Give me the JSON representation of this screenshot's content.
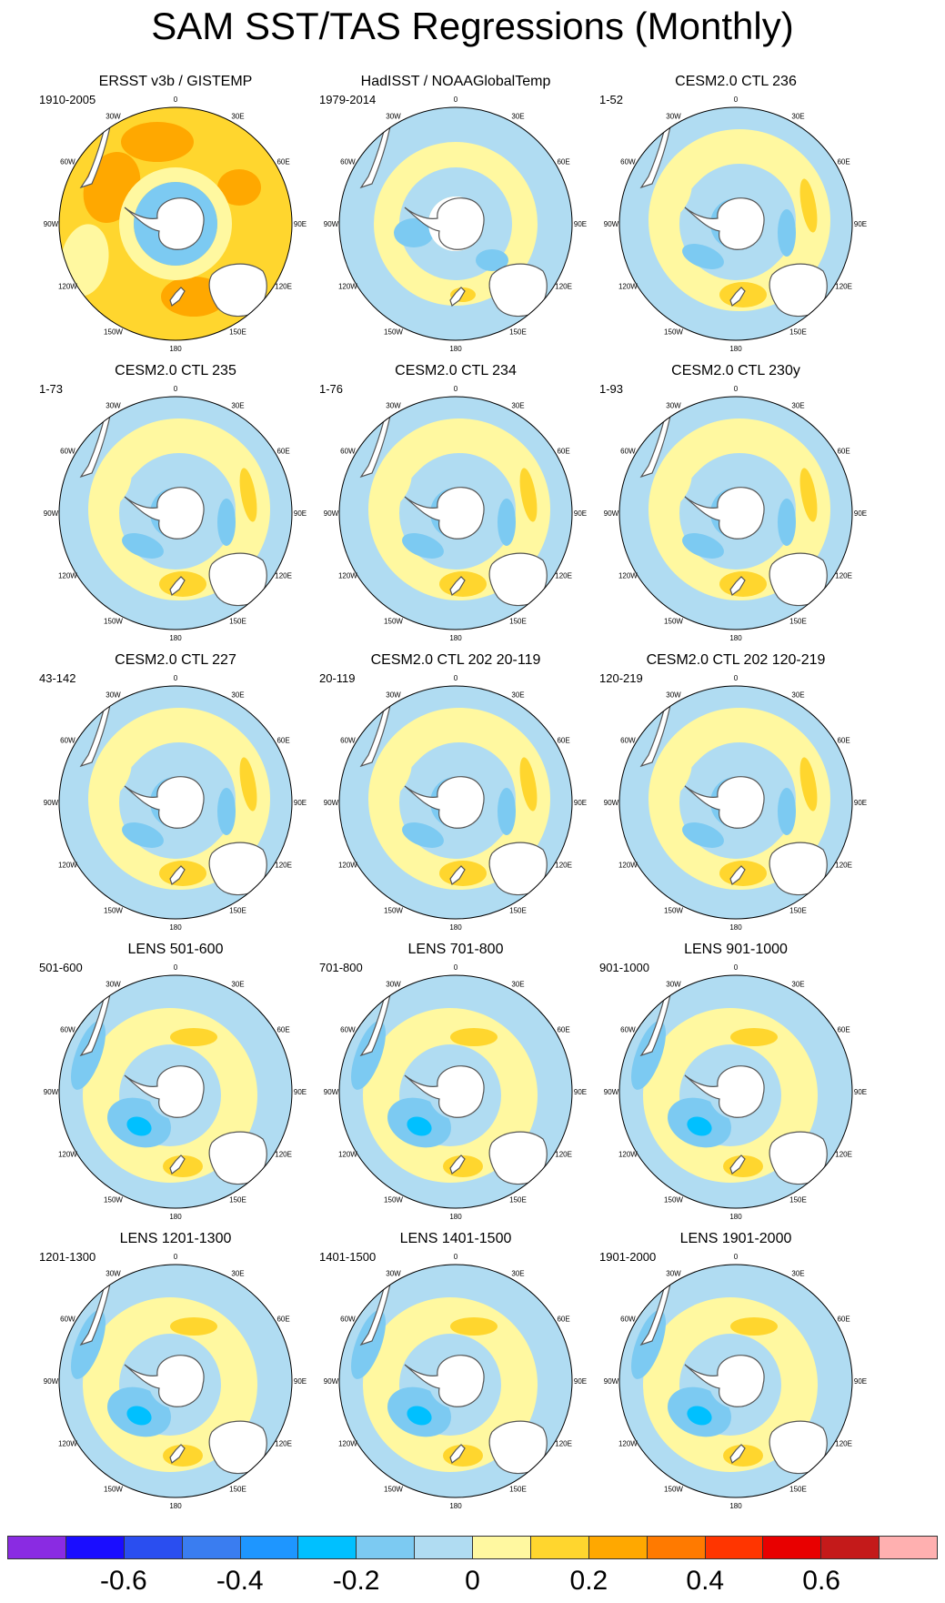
{
  "title": "SAM SST/TAS Regressions (Monthly)",
  "lon_labels": [
    "0",
    "30E",
    "60E",
    "90E",
    "120E",
    "150E",
    "180",
    "150W",
    "120W",
    "90W",
    "60W",
    "30W"
  ],
  "colors": {
    "land": "#ffffff",
    "coast": "#555555",
    "missing": "#ffffff"
  },
  "panels": [
    {
      "title": "ERSST v3b / GISTEMP",
      "period": "1910-2005",
      "pattern": "obs_warm"
    },
    {
      "title": "HadISST / NOAAGlobalTemp",
      "period": "1979-2014",
      "pattern": "obs_recent"
    },
    {
      "title": "CESM2.0 CTL 236",
      "period": "1-52",
      "pattern": "model"
    },
    {
      "title": "CESM2.0 CTL 235",
      "period": "1-73",
      "pattern": "model"
    },
    {
      "title": "CESM2.0 CTL 234",
      "period": "1-76",
      "pattern": "model"
    },
    {
      "title": "CESM2.0 CTL 230y",
      "period": "1-93",
      "pattern": "model"
    },
    {
      "title": "CESM2.0 CTL 227",
      "period": "43-142",
      "pattern": "model"
    },
    {
      "title": "CESM2.0 CTL 202 20-119",
      "period": "20-119",
      "pattern": "model"
    },
    {
      "title": "CESM2.0 CTL 202 120-219",
      "period": "120-219",
      "pattern": "model"
    },
    {
      "title": "LENS 501-600",
      "period": "501-600",
      "pattern": "lens"
    },
    {
      "title": "LENS 701-800",
      "period": "701-800",
      "pattern": "lens"
    },
    {
      "title": "LENS 901-1000",
      "period": "901-1000",
      "pattern": "lens"
    },
    {
      "title": "LENS 1201-1300",
      "period": "1201-1300",
      "pattern": "lens"
    },
    {
      "title": "LENS 1401-1500",
      "period": "1401-1500",
      "pattern": "lens"
    },
    {
      "title": "LENS 1901-2000",
      "period": "1901-2000",
      "pattern": "lens"
    }
  ],
  "colorbar": {
    "colors": [
      "#8a2be2",
      "#1a0dff",
      "#2a4ef0",
      "#3a7df0",
      "#1e96ff",
      "#00c0ff",
      "#7ccaf2",
      "#b0dcf2",
      "#fff8a0",
      "#ffd62e",
      "#ffa800",
      "#ff7a00",
      "#ff3500",
      "#e80000",
      "#c41a1a",
      "#ffb0b0"
    ],
    "tick_labels": [
      {
        "label": "-0.6",
        "value": -0.6
      },
      {
        "label": "-0.4",
        "value": -0.4
      },
      {
        "label": "-0.2",
        "value": -0.2
      },
      {
        "label": "0",
        "value": 0
      },
      {
        "label": "0.2",
        "value": 0.2
      },
      {
        "label": "0.4",
        "value": 0.4
      },
      {
        "label": "0.6",
        "value": 0.6
      }
    ],
    "value_min": -0.8,
    "value_max": 0.8
  }
}
